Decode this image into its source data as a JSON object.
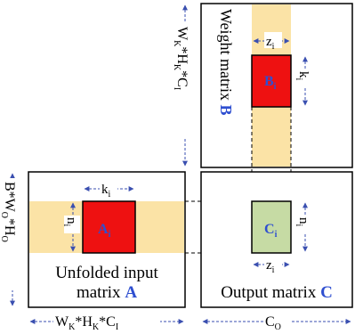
{
  "weight": {
    "label_line1": "Weight matrix",
    "label_bold": "B",
    "dim_rows": "W",
    "dim_rows_sub1": "K",
    "dim_rows_mid": "*H",
    "dim_rows_sub2": "K",
    "dim_rows_end": "*C",
    "dim_rows_sub3": "I",
    "block_label": "B",
    "block_sub": "i",
    "z_label": "z",
    "z_sub": "i",
    "k_label": "k",
    "k_sub": "i"
  },
  "input": {
    "label_line1": "Unfolded input",
    "label_line2": "matrix",
    "label_bold": "A",
    "left_dim_a": "B*W",
    "left_dim_a_sub": "O",
    "left_dim_b": "*H",
    "left_dim_b_sub": "O",
    "bottom_dim": "W",
    "bottom_dim_sub1": "K",
    "bottom_dim_mid": "*H",
    "bottom_dim_sub2": "K",
    "bottom_dim_end": "*C",
    "bottom_dim_sub3": "I",
    "block_label": "A",
    "block_sub": "i",
    "k_label": "k",
    "k_sub": "i",
    "n_label": "n",
    "n_sub": "i"
  },
  "output": {
    "label_line1": "Output matrix",
    "label_bold": "C",
    "bottom_dim": "C",
    "bottom_dim_sub": "O",
    "block_label": "C",
    "block_sub": "i",
    "z_label": "z",
    "z_sub": "i",
    "n_label": "n",
    "n_sub": "i"
  },
  "colors": {
    "highlight_band": "#fbe3a6",
    "block_red": "#ee1111",
    "block_green": "#c6dba4",
    "label_blue": "#2f4fd0",
    "text_black": "#000000"
  }
}
